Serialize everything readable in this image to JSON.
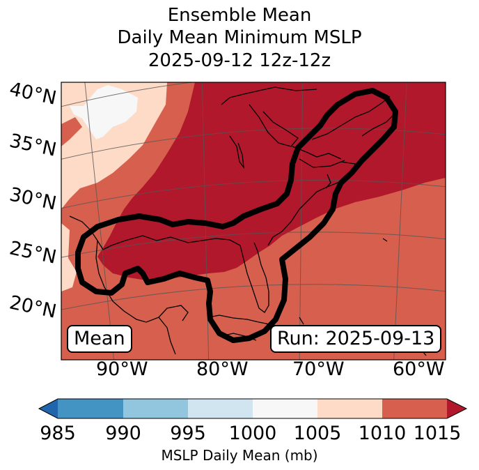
{
  "title": [
    "Ensemble Mean",
    "Daily Mean Minimum MSLP",
    "2025-09-12 12z-12z"
  ],
  "lat_labels": [
    "40°N",
    "35°N",
    "30°N",
    "25°N",
    "20°N"
  ],
  "lon_labels": [
    "90°W",
    "80°W",
    "70°W",
    "60°W"
  ],
  "mean_label": "Mean",
  "run_label": "Run: 2025-09-13",
  "colorbar": {
    "label": "MSLP Daily Mean (mb)",
    "ticks": [
      "985",
      "990",
      "995",
      "1000",
      "1005",
      "1010",
      "1015"
    ],
    "colors": [
      "#4393c3",
      "#92c5de",
      "#d1e5f0",
      "#f7f7f7",
      "#fddbc7",
      "#d6604d",
      "#b2182b",
      "#2166ac"
    ]
  },
  "map_colors": {
    "dark_red": "#b2182b",
    "red": "#d6604d",
    "salmon": "#fddbc7",
    "white": "#f7f7f7",
    "contour": "#000000",
    "grid": "#555555"
  }
}
